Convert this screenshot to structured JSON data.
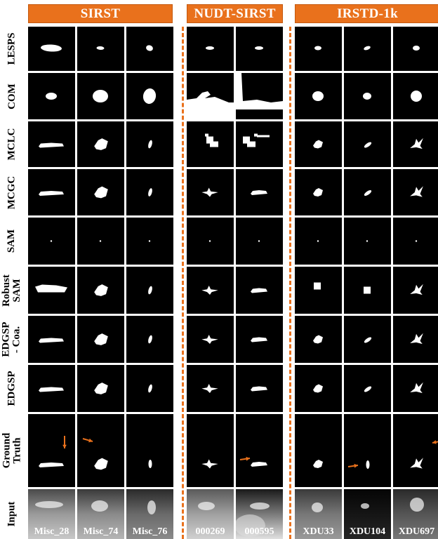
{
  "groups": [
    {
      "id": "sirst",
      "label": "SIRST"
    },
    {
      "id": "nudt",
      "label": "NUDT-SIRST"
    },
    {
      "id": "irstd",
      "label": "IRSTD-1k"
    }
  ],
  "methods": [
    {
      "id": "lesps",
      "label": "LESPS"
    },
    {
      "id": "com",
      "label": "COM"
    },
    {
      "id": "mclc",
      "label": "MCLC"
    },
    {
      "id": "mcgc",
      "label": "MCGC"
    },
    {
      "id": "sam",
      "label": "SAM"
    },
    {
      "id": "robust-sam",
      "label": "Robust SAM"
    },
    {
      "id": "edgsp-coa",
      "label": "EDGSP - Coa."
    },
    {
      "id": "edgsp",
      "label": "EDGSP"
    },
    {
      "id": "ground-truth",
      "label": "Ground Truth"
    },
    {
      "id": "input",
      "label": "Input"
    }
  ],
  "samples": [
    {
      "group": "sirst",
      "caption": "Misc_28"
    },
    {
      "group": "sirst",
      "caption": "Misc_74"
    },
    {
      "group": "sirst",
      "caption": "Misc_76"
    },
    {
      "group": "nudt",
      "caption": "000269"
    },
    {
      "group": "nudt",
      "caption": "000595"
    },
    {
      "group": "irstd",
      "caption": "XDU33"
    },
    {
      "group": "irstd",
      "caption": "XDU104"
    },
    {
      "group": "irstd",
      "caption": "XDU697"
    }
  ],
  "colors": {
    "accent": "#e9711c",
    "mask_background": "#000000",
    "mask_foreground": "#ffffff"
  },
  "annotations": {
    "ground_truth_arrows": "orange arrows pointing to targets"
  }
}
